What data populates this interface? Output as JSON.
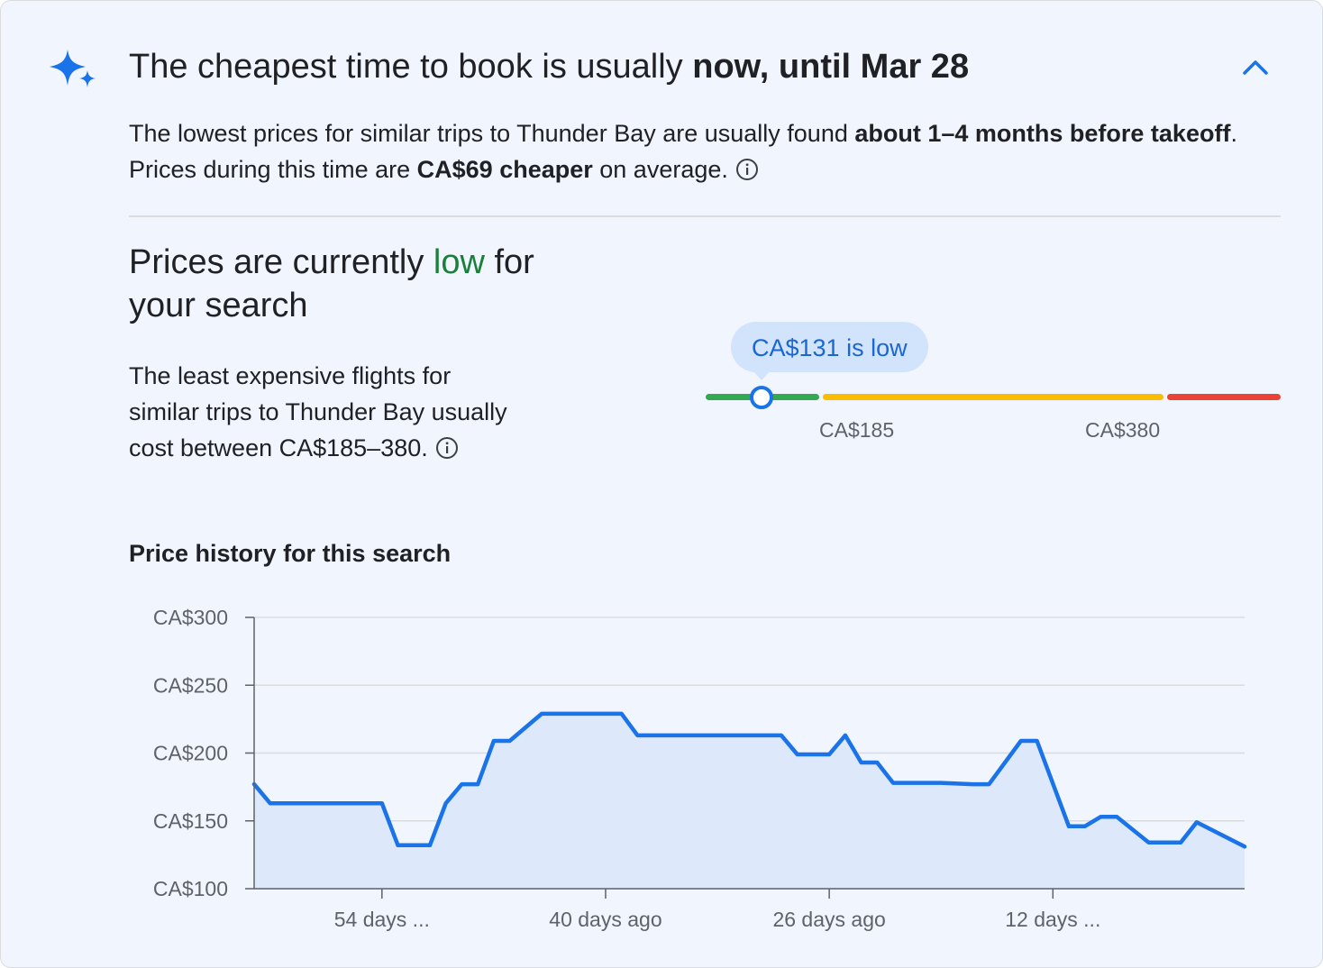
{
  "header": {
    "icon": "sparkle-icon",
    "headline_prefix": "The cheapest time to book is usually",
    "headline_bold": "now, until Mar 28",
    "collapse_icon": "chevron-up-icon"
  },
  "advice": {
    "part1": "The lowest prices for similar trips to Thunder Bay are usually found",
    "bold1": "about 1–4 months before takeoff",
    "part2": ". Prices during this time are",
    "bold2": "CA$69 cheaper",
    "part3": "on average.",
    "info_icon": "info-icon"
  },
  "status": {
    "title_prefix": "Prices are currently",
    "title_level": "low",
    "title_suffix": "for your search",
    "range_text": "The least expensive flights for similar trips to Thunder Bay usually cost between CA$185–380.",
    "info_icon": "info-icon"
  },
  "price_meter": {
    "current_label": "CA$131 is low",
    "current_price": 131,
    "low_threshold_label": "CA$185",
    "high_threshold_label": "CA$380",
    "colors": {
      "low": "#34a853",
      "typical": "#fbbc04",
      "high": "#ea4335",
      "marker": "#1a73e8"
    }
  },
  "history": {
    "title": "Price history for this search"
  },
  "chart_data": {
    "type": "area",
    "title": "Price history for this search",
    "xlabel": "",
    "ylabel": "",
    "ylim": [
      100,
      300
    ],
    "xlim": [
      -62,
      0
    ],
    "x_unit": "days ago (negative = past)",
    "yticks": [
      {
        "value": 100,
        "label": "CA$100"
      },
      {
        "value": 150,
        "label": "CA$150"
      },
      {
        "value": 200,
        "label": "CA$200"
      },
      {
        "value": 250,
        "label": "CA$250"
      },
      {
        "value": 300,
        "label": "CA$300"
      }
    ],
    "xticks": [
      {
        "value": -54,
        "label": "54 days ..."
      },
      {
        "value": -40,
        "label": "40 days ago"
      },
      {
        "value": -26,
        "label": "26 days ago"
      },
      {
        "value": -12,
        "label": "12 days ..."
      }
    ],
    "grid": true,
    "color": "#1a73e8",
    "fill": "#dde8fb",
    "series": [
      {
        "x": [
          -62,
          -61,
          -54,
          -53,
          -51,
          -50,
          -49,
          -48,
          -47,
          -46,
          -44,
          -43,
          -39,
          -38,
          -29,
          -28,
          -26,
          -25,
          -24,
          -23,
          -22,
          -19,
          -17,
          -16,
          -14,
          -13,
          -11,
          -10,
          -9,
          -8,
          -6,
          -5,
          -4,
          -3,
          0
        ],
        "values": [
          177,
          163,
          163,
          132,
          132,
          163,
          177,
          177,
          209,
          209,
          229,
          229,
          229,
          213,
          213,
          199,
          199,
          213,
          193,
          193,
          178,
          178,
          177,
          177,
          209,
          209,
          146,
          146,
          153,
          153,
          134,
          134,
          134,
          149,
          131
        ]
      }
    ]
  }
}
